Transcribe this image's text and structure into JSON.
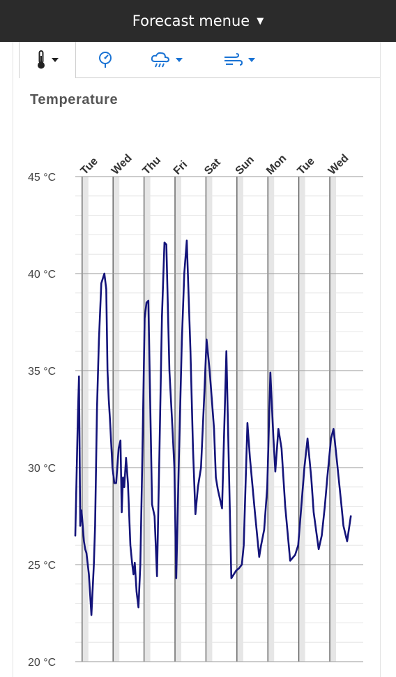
{
  "header": {
    "title": "Forecast menue"
  },
  "tabs": [
    {
      "icon": "thermometer-icon",
      "active": true,
      "dropdown": true
    },
    {
      "icon": "pressure-gauge-icon",
      "active": false,
      "dropdown": false
    },
    {
      "icon": "rain-cloud-icon",
      "active": false,
      "dropdown": true
    },
    {
      "icon": "wind-icon",
      "active": false,
      "dropdown": true
    }
  ],
  "section": {
    "title": "Temperature"
  },
  "colors": {
    "line": "#14147a",
    "accent": "#1a73d4",
    "topbar": "#2b2b2b"
  },
  "chart_data": {
    "type": "line",
    "title": "Temperature",
    "ylim": [
      20,
      45
    ],
    "y_ticks": [
      20,
      25,
      30,
      35,
      40,
      45
    ],
    "y_tick_labels": [
      "20 °C",
      "25 °C",
      "30 °C",
      "35 °C",
      "40 °C",
      "45 °C"
    ],
    "x_range": [
      0,
      9.3
    ],
    "day_labels": [
      "Tue",
      "Wed",
      "Thu",
      "Fri",
      "Sat",
      "Sun",
      "Mon",
      "Tue",
      "Wed"
    ],
    "day_starts": [
      0.22,
      1.22,
      2.22,
      3.22,
      4.22,
      5.22,
      6.22,
      7.22,
      8.22
    ],
    "grid": true,
    "series": [
      {
        "x": [
          0,
          0.08,
          0.12,
          0.16,
          0.2,
          0.24,
          0.28,
          0.32,
          0.36,
          0.44,
          0.52,
          0.6,
          0.64,
          0.7,
          0.76,
          0.84,
          0.94,
          1.0,
          1.04,
          1.08,
          1.12,
          1.2,
          1.26,
          1.32,
          1.4,
          1.46,
          1.5,
          1.54,
          1.58,
          1.64,
          1.7,
          1.78,
          1.84,
          1.88,
          1.92,
          1.98,
          2.04,
          2.1,
          2.16,
          2.24,
          2.3,
          2.36,
          2.44,
          2.48,
          2.56,
          2.64,
          2.72,
          2.8,
          2.88,
          2.94,
          3.04,
          3.14,
          3.2,
          3.26,
          3.34,
          3.44,
          3.52,
          3.6,
          3.72,
          3.8,
          3.88,
          3.96,
          4.06,
          4.16,
          4.24,
          4.34,
          4.48,
          4.54,
          4.6,
          4.74,
          4.88,
          5.04,
          5.2,
          5.28,
          5.38,
          5.44,
          5.56,
          5.64,
          5.8,
          5.94,
          6.0,
          6.1,
          6.2,
          6.3,
          6.4,
          6.46,
          6.56,
          6.66,
          6.78,
          6.94,
          7.1,
          7.2,
          7.3,
          7.4,
          7.5,
          7.62,
          7.7,
          7.8,
          7.86,
          7.96,
          8.06,
          8.14,
          8.26,
          8.34,
          8.44,
          8.6,
          8.66,
          8.78,
          8.9
        ],
        "y": [
          26.5,
          32.5,
          34.7,
          27.0,
          27.8,
          27.0,
          26.2,
          25.8,
          25.6,
          24.5,
          22.4,
          25.0,
          27.0,
          33.0,
          36.5,
          39.5,
          40.0,
          39.2,
          35.0,
          33.5,
          32.5,
          30.0,
          29.2,
          29.2,
          31.0,
          31.4,
          27.7,
          29.5,
          29.0,
          30.5,
          29.2,
          26.0,
          25.0,
          24.5,
          25.1,
          23.6,
          22.8,
          25.0,
          30.0,
          37.7,
          38.5,
          38.6,
          31.5,
          28.1,
          27.5,
          24.4,
          31.0,
          37.8,
          41.6,
          41.5,
          35.0,
          32.0,
          30.0,
          24.3,
          30.0,
          36.5,
          40.0,
          41.7,
          36.0,
          31.0,
          27.6,
          29.0,
          30.0,
          33.5,
          36.6,
          35.0,
          32.0,
          29.5,
          28.9,
          27.9,
          36.0,
          24.3,
          24.7,
          24.8,
          25.0,
          26.0,
          32.3,
          30.5,
          27.7,
          25.4,
          26.0,
          26.8,
          29.0,
          34.9,
          31.5,
          29.8,
          32.0,
          31.0,
          28.0,
          25.2,
          25.5,
          26.0,
          28.0,
          30.0,
          31.5,
          29.5,
          27.7,
          26.5,
          25.8,
          26.5,
          28.0,
          29.5,
          31.5,
          32.0,
          30.5,
          28.0,
          27.0,
          26.2,
          27.5
        ],
        "stop_index": 109
      }
    ]
  }
}
